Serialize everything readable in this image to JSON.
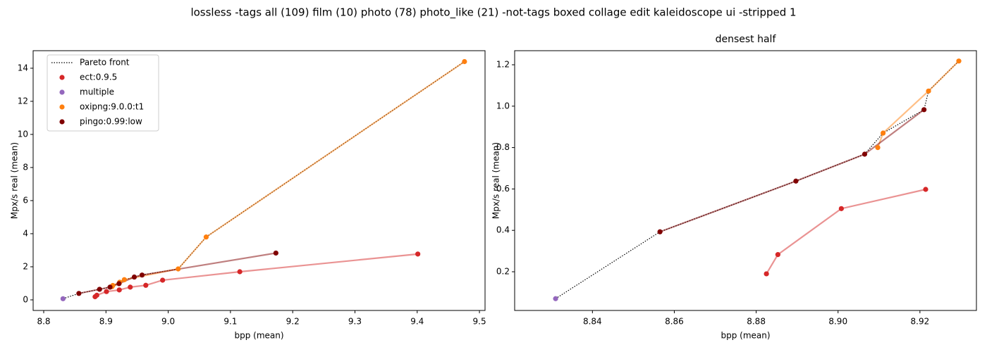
{
  "title": "lossless -tags all (109) film (10) photo (78) photo_like (21) -not-tags boxed collage edit kaleidoscope ui -stripped 1",
  "chart_data": [
    {
      "type": "scatter",
      "xlabel": "bpp (mean)",
      "ylabel": "Mpx/s real (mean)",
      "legend": "upper left",
      "xlim": [
        8.783,
        9.509
      ],
      "ylim": [
        -0.64,
        15.06
      ],
      "xticks": [
        8.8,
        8.9,
        {
          "value": 9,
          "label": "9.0"
        },
        9.1,
        9.2,
        9.3,
        9.4,
        9.5
      ],
      "yticks": [
        0,
        2,
        4,
        6,
        8,
        10,
        12,
        14
      ],
      "series": [
        {
          "name": "Pareto front",
          "color": "#000000",
          "line_style": "dotted",
          "markers": false,
          "x": [
            8.831,
            8.8565,
            8.8897,
            8.9065,
            8.911,
            8.921,
            8.9221,
            8.9295,
            8.9455,
            8.958,
            9.016,
            9.061,
            9.476
          ],
          "values": [
            0.07,
            0.39,
            0.64,
            0.77,
            0.87,
            0.98,
            1.07,
            1.22,
            1.38,
            1.5,
            1.87,
            3.8,
            14.4
          ]
        },
        {
          "name": "ect:0.9.5",
          "color": "#d62728",
          "markers": true,
          "x": [
            8.8825,
            8.8853,
            8.9008,
            8.9214,
            8.939,
            8.964,
            8.991,
            9.115,
            9.401
          ],
          "values": [
            0.19,
            0.28,
            0.5,
            0.6,
            0.77,
            0.88,
            1.19,
            1.7,
            2.77
          ]
        },
        {
          "name": "multiple",
          "color": "#9467bd",
          "markers": true,
          "x": [
            8.831
          ],
          "values": [
            0.07
          ]
        },
        {
          "name": "oxipng:9.0.0:t1",
          "color": "#ff7f0e",
          "markers": true,
          "x": [
            8.9097,
            8.911,
            8.9221,
            8.9295,
            9.016,
            9.061,
            9.476
          ],
          "values": [
            0.8,
            0.87,
            1.07,
            1.22,
            1.87,
            3.8,
            14.4
          ]
        },
        {
          "name": "pingo:0.99:low",
          "color": "#800000",
          "markers": true,
          "x": [
            8.8565,
            8.8897,
            8.9065,
            8.921,
            8.9455,
            8.958,
            9.173
          ],
          "values": [
            0.39,
            0.64,
            0.77,
            0.98,
            1.38,
            1.5,
            2.83
          ]
        }
      ]
    },
    {
      "type": "scatter",
      "title": "densest half",
      "xlabel": "bpp (mean)",
      "ylabel": "Mpx/s real (mean)",
      "xlim": [
        8.821,
        8.9338
      ],
      "ylim": [
        0.013,
        1.268
      ],
      "xticks": [
        8.84,
        8.86,
        8.88,
        {
          "value": 8.9,
          "label": "8.90"
        },
        8.92
      ],
      "yticks": [
        0.2,
        0.4,
        0.6,
        0.8,
        {
          "value": 1,
          "label": "1.0"
        },
        1.2
      ],
      "series": [
        {
          "name": "Pareto front",
          "color": "#000000",
          "line_style": "dotted",
          "markers": false,
          "x": [
            8.831,
            8.8565,
            8.8897,
            8.9065,
            8.911,
            8.921,
            8.9221,
            8.9295
          ],
          "values": [
            0.07,
            0.393,
            0.638,
            0.768,
            0.87,
            0.983,
            1.073,
            1.218
          ]
        },
        {
          "name": "ect:0.9.5",
          "color": "#d62728",
          "markers": true,
          "x": [
            8.8825,
            8.8853,
            8.9008,
            8.9214
          ],
          "values": [
            0.19,
            0.283,
            0.505,
            0.598
          ]
        },
        {
          "name": "multiple",
          "color": "#9467bd",
          "markers": true,
          "x": [
            8.831
          ],
          "values": [
            0.07
          ]
        },
        {
          "name": "oxipng:9.0.0:t1",
          "color": "#ff7f0e",
          "markers": true,
          "x": [
            8.9097,
            8.911,
            8.9221,
            8.9295
          ],
          "values": [
            0.8,
            0.87,
            1.073,
            1.218
          ]
        },
        {
          "name": "pingo:0.99:low",
          "color": "#800000",
          "markers": true,
          "x": [
            8.8565,
            8.8897,
            8.9065,
            8.921
          ],
          "values": [
            0.393,
            0.638,
            0.768,
            0.983
          ]
        }
      ]
    }
  ]
}
